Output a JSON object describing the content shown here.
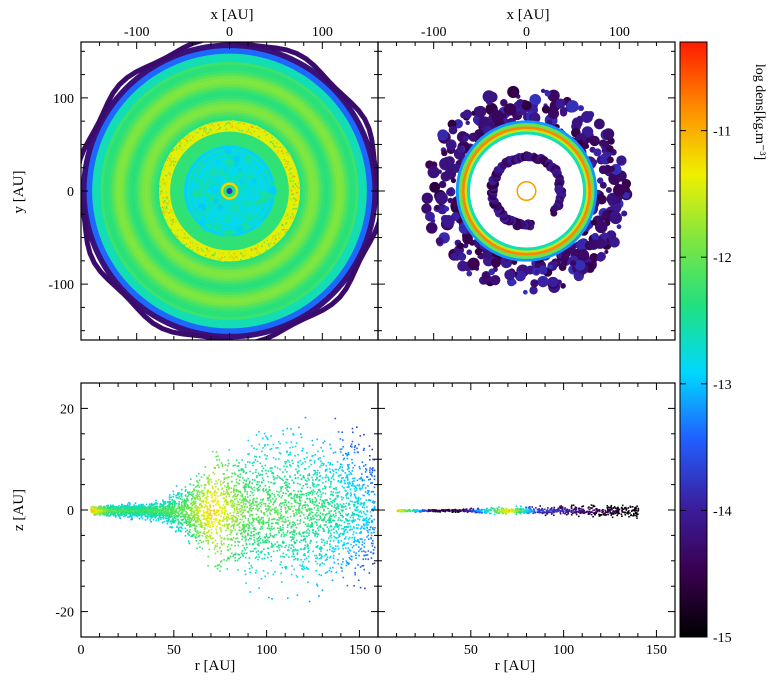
{
  "chart_data": [
    {
      "panel": "top-left",
      "type": "heatmap",
      "xlabel": "x [AU]",
      "ylabel": "y [AU]",
      "xticks": [
        -100,
        0,
        100
      ],
      "yticks": [
        100,
        0,
        -100
      ],
      "xlim": [
        -160,
        160
      ],
      "ylim": [
        -160,
        160
      ],
      "structures": [
        {
          "kind": "disk",
          "outer_radius": 160,
          "log_density": -12.1
        },
        {
          "kind": "ring",
          "radius": 70,
          "log_density": -11.4
        },
        {
          "kind": "cavity",
          "radius": 50,
          "log_density": -12.8
        },
        {
          "kind": "inner-disk",
          "radius": 8,
          "log_density": -11.0
        }
      ]
    },
    {
      "panel": "top-right",
      "type": "heatmap",
      "xlabel": "x [AU]",
      "xticks": [
        -100,
        0,
        100
      ],
      "xlim": [
        -160,
        160
      ],
      "ylim": [
        -160,
        160
      ],
      "structures": [
        {
          "kind": "clumpy-halo",
          "inner_radius": 70,
          "outer_radius": 110,
          "log_density": -14.2
        },
        {
          "kind": "ring",
          "radius": 68,
          "log_density": -10.8
        },
        {
          "kind": "inner-ring",
          "radius": 37,
          "log_density": -14.3
        },
        {
          "kind": "central-ring",
          "radius": 10,
          "log_density": -10.9
        }
      ]
    },
    {
      "panel": "bottom-left",
      "type": "scatter",
      "xlabel": "r [AU]",
      "ylabel": "z [AU]",
      "xticks": [
        0,
        50,
        100,
        150
      ],
      "yticks": [
        20,
        0,
        -20
      ],
      "xlim": [
        0,
        160
      ],
      "ylim": [
        -25,
        25
      ],
      "profile": {
        "r": [
          5,
          15,
          30,
          45,
          55,
          70,
          90,
          110,
          130,
          150,
          158
        ],
        "z_half_thickness": [
          1,
          1.5,
          2,
          3,
          7,
          13,
          17,
          20,
          20,
          18,
          17
        ],
        "log_density_midplane": [
          -10.9,
          -12.0,
          -12.2,
          -12.1,
          -12.0,
          -11.1,
          -12.0,
          -12.1,
          -12.3,
          -12.7,
          -13.0
        ]
      }
    },
    {
      "panel": "bottom-right",
      "type": "scatter",
      "xlabel": "r [AU]",
      "xticks": [
        0,
        50,
        100,
        150
      ],
      "xlim": [
        0,
        160
      ],
      "ylim": [
        -25,
        25
      ],
      "profile": {
        "r": [
          10,
          30,
          45,
          60,
          70,
          85,
          100,
          115,
          130,
          140
        ],
        "z_half_thickness": [
          0.3,
          0.3,
          0.4,
          0.8,
          1.0,
          1.0,
          1.2,
          1.4,
          1.6,
          1.8
        ],
        "log_density_midplane": [
          -10.9,
          -14.3,
          -14.2,
          -12.2,
          -11.0,
          -13.5,
          -13.8,
          -14.2,
          -14.6,
          -14.9
        ]
      }
    }
  ],
  "colorbar": {
    "label": "log dens[kg.m⁻³]",
    "ticks": [
      -11,
      -12,
      -13,
      -14,
      -15
    ],
    "range": [
      -15,
      -10.3
    ]
  },
  "colors": {
    "colormap": [
      "#000000",
      "#3a0050",
      "#3a1fa0",
      "#2060ff",
      "#00d8ff",
      "#20e080",
      "#7ee640",
      "#f0f000",
      "#ff8c00",
      "#ff1a00"
    ]
  }
}
